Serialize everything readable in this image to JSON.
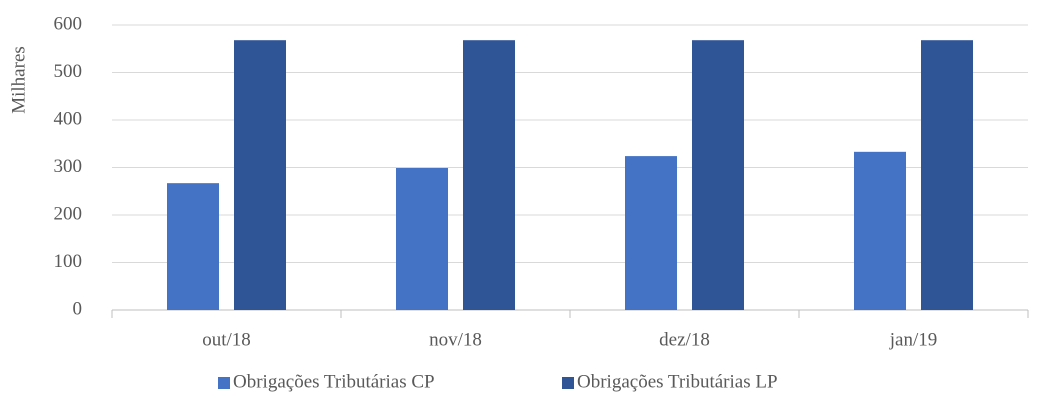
{
  "chart_data": {
    "type": "bar",
    "y_label": "Milhares",
    "categories": [
      "out/18",
      "nov/18",
      "dez/18",
      "jan/19"
    ],
    "series": [
      {
        "name": "Obrigações Tributárias CP",
        "color": "#4472c4",
        "values": [
          267,
          299,
          324,
          333
        ]
      },
      {
        "name": "Obrigações Tributárias LP",
        "color": "#2f5597",
        "values": [
          568,
          568,
          568,
          568
        ]
      }
    ],
    "ylim": [
      0,
      600
    ],
    "yticks": [
      0,
      100,
      200,
      300,
      400,
      500,
      600
    ],
    "grid": true,
    "legend": "bottom"
  }
}
